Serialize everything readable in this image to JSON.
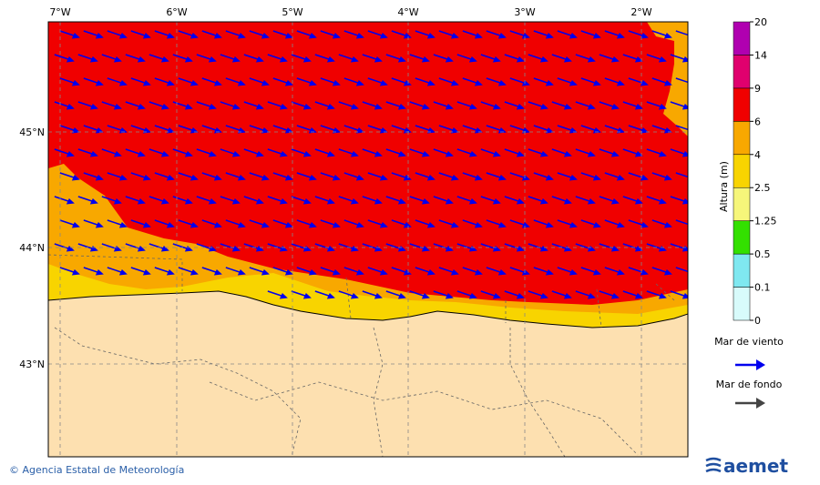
{
  "map": {
    "lon_labels": [
      "7°W",
      "6°W",
      "5°W",
      "4°W",
      "3°W",
      "2°W"
    ],
    "lat_labels": [
      "45°N",
      "44°N",
      "43°N"
    ]
  },
  "legend": {
    "title": "Altura (m)",
    "levels": [
      0,
      0.1,
      0.5,
      1.25,
      2.5,
      4,
      6,
      9,
      14,
      20
    ],
    "colors": [
      "#d8fbfb",
      "#7fe8f0",
      "#33e000",
      "#f6f67a",
      "#f8d400",
      "#f8a800",
      "#f00000",
      "#e0006e",
      "#b000b0"
    ]
  },
  "arrows": [
    {
      "label": "Mar de viento",
      "color": "#0000ee"
    },
    {
      "label": "Mar de fondo",
      "color": "#444444"
    }
  ],
  "footer": {
    "credit": "© Agencia Estatal de Meteorología",
    "logo": "aemet"
  }
}
